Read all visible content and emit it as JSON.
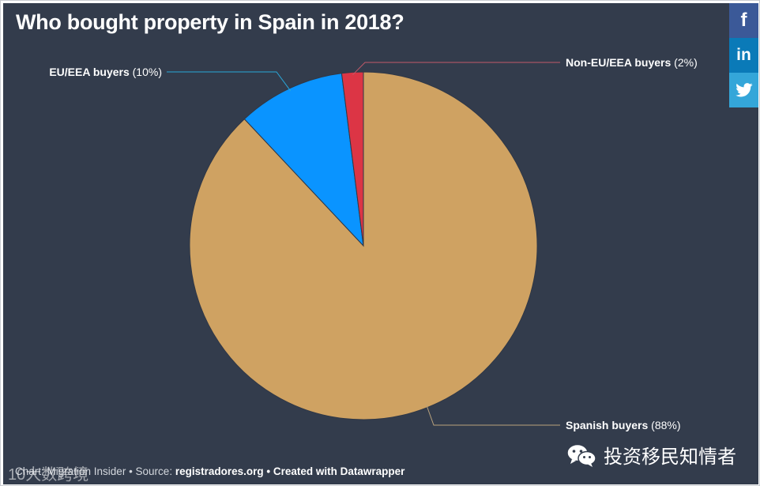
{
  "chart_data": {
    "type": "pie",
    "title": "Who bought property in Spain in 2018?",
    "slices": [
      {
        "label": "Spanish buyers",
        "value": 88,
        "value_label": "(88%)",
        "color": "#cfa262"
      },
      {
        "label": "EU/EEA buyers",
        "value": 10,
        "value_label": "(10%)",
        "color": "#0a94ff"
      },
      {
        "label": "Non-EU/EEA buyers",
        "value": 2,
        "value_label": "(2%)",
        "color": "#dc3545"
      }
    ]
  },
  "colors": {
    "background": "#333c4c",
    "leader_spanish": "#b9a27d",
    "leader_eu": "#2aa7d9",
    "leader_noneu": "#c25a6a"
  },
  "share": {
    "facebook_icon": "facebook-icon",
    "linkedin_icon": "linkedin-icon",
    "twitter_icon": "twitter-icon",
    "facebook_glyph": "f",
    "linkedin_glyph": "in"
  },
  "footer": {
    "chart_prefix": "Chart: ",
    "chart_credit": "Migration Insider",
    "source_sep": " • Source: ",
    "source": "registradores.org",
    "created": " • Created with Datawrapper"
  },
  "watermarks": {
    "left": "10大数跨境",
    "right": "投资移民知情者"
  }
}
